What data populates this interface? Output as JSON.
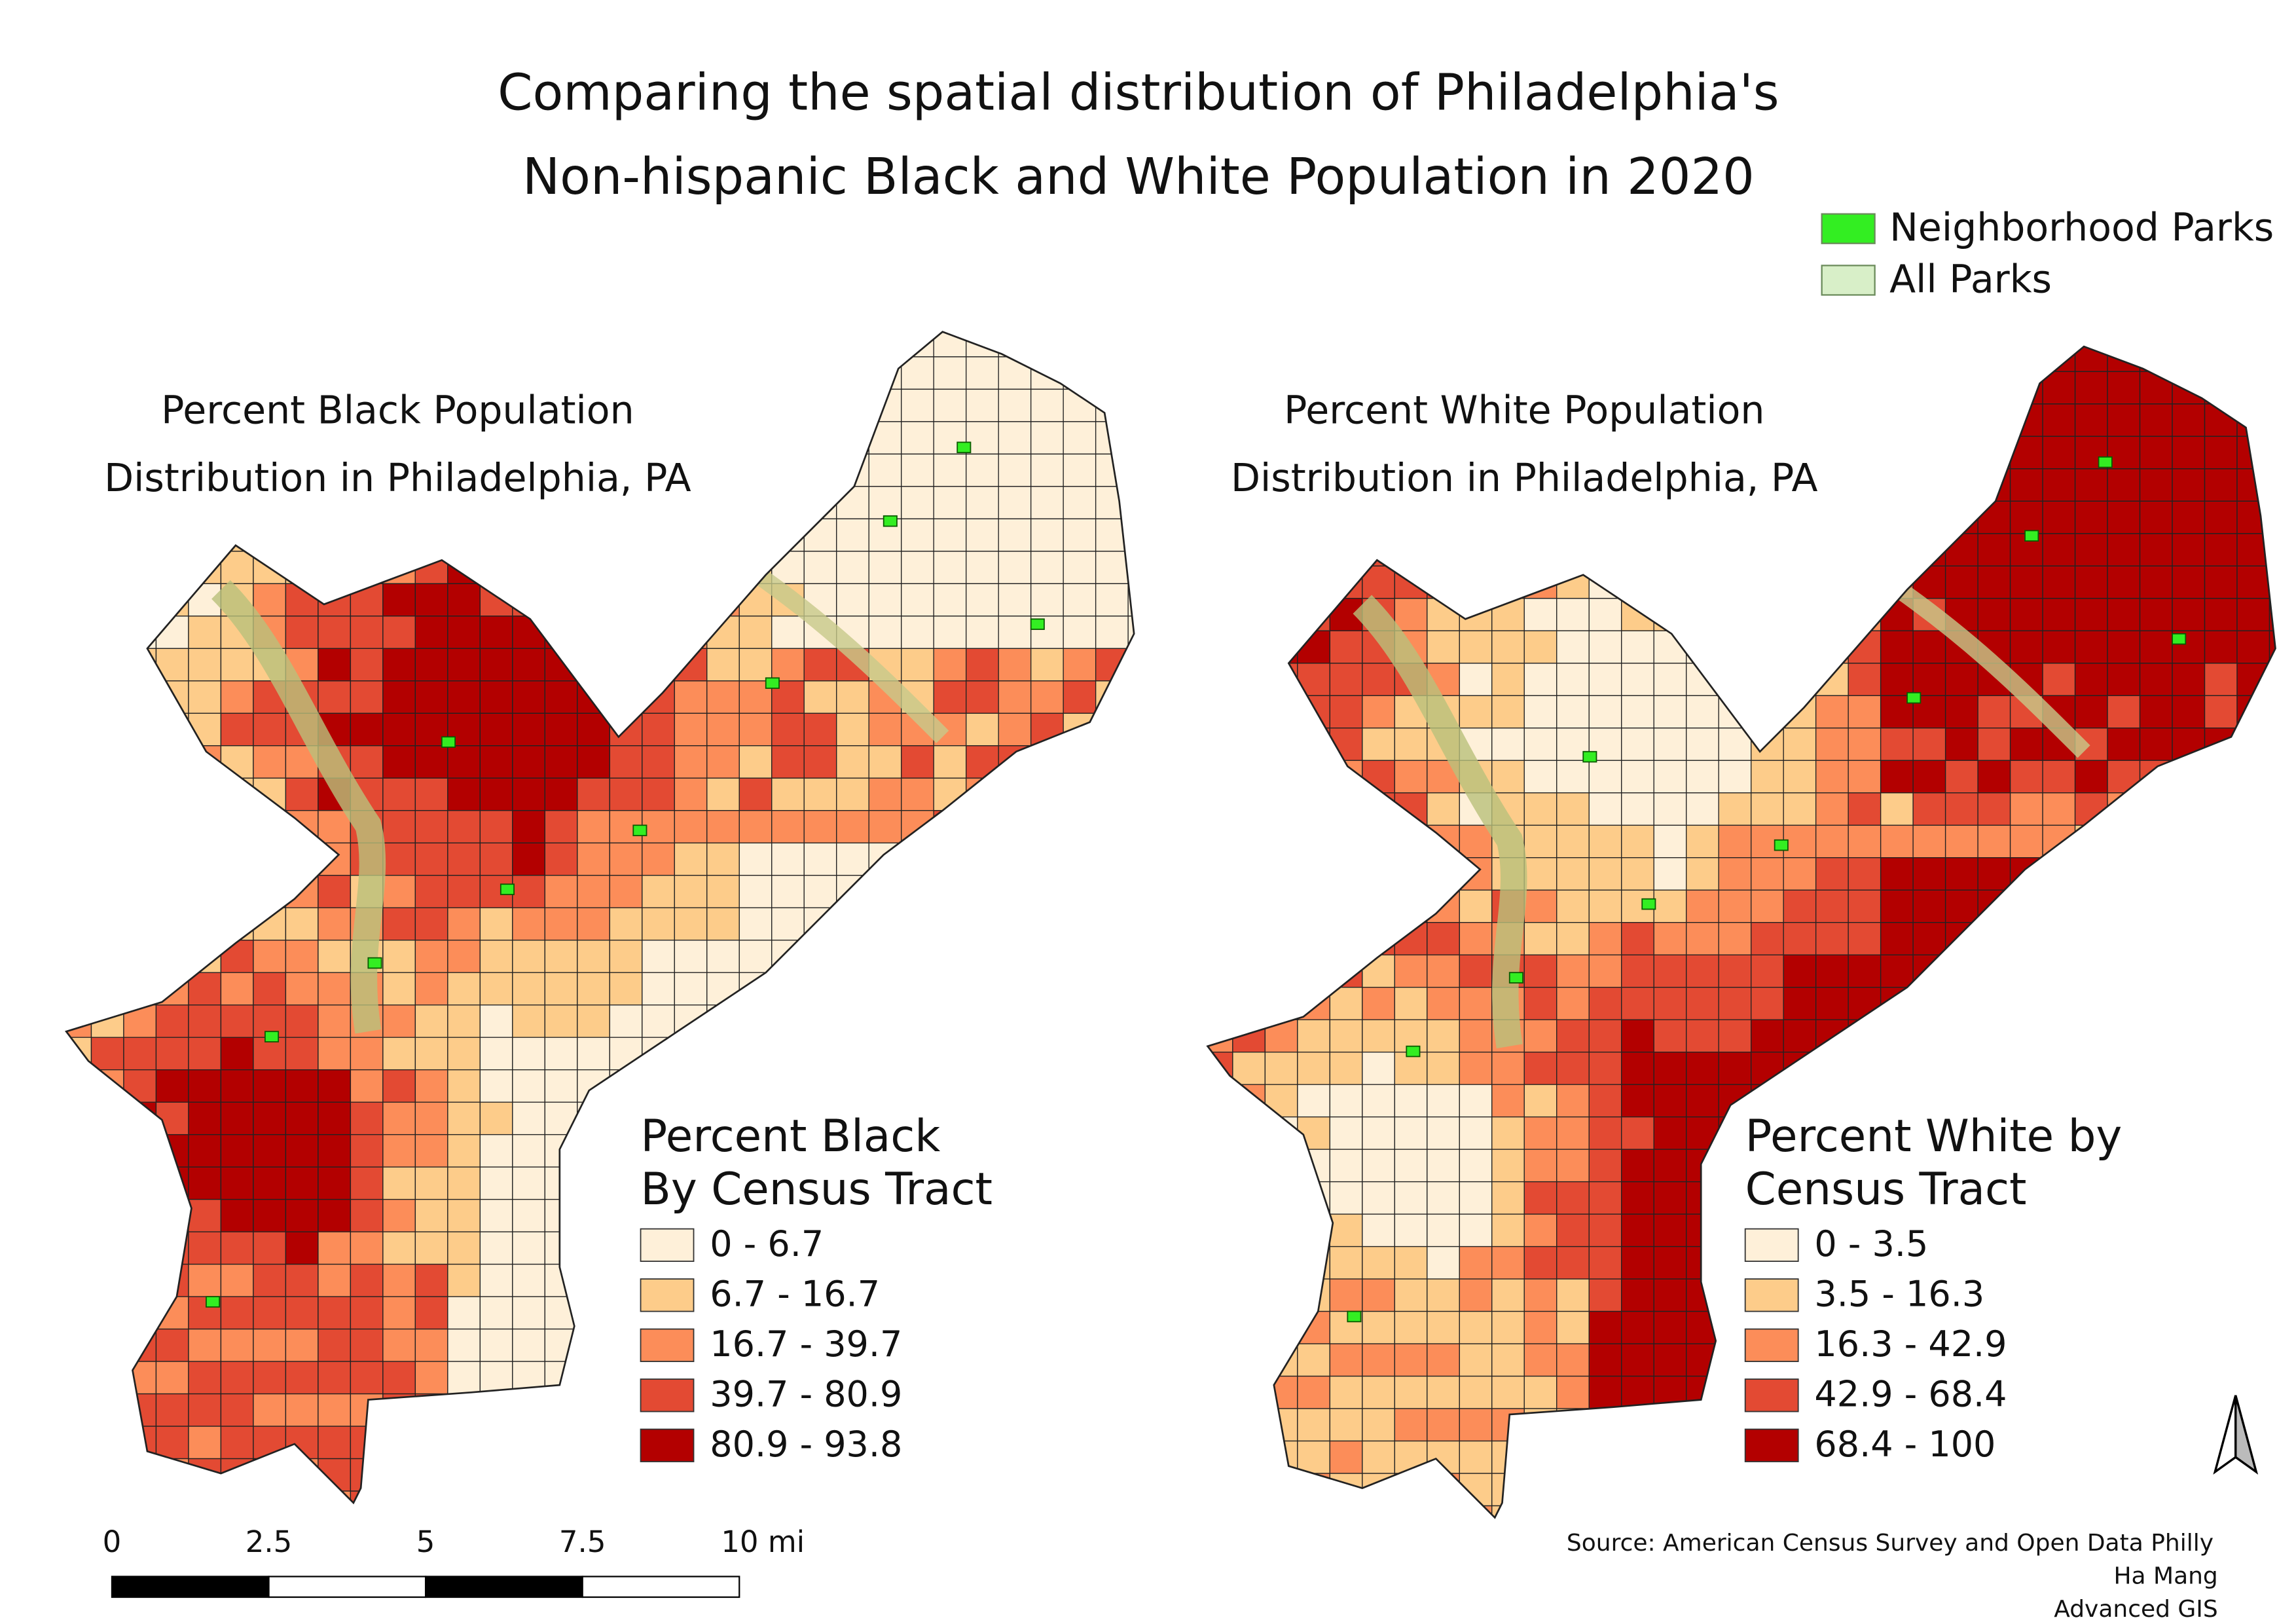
{
  "title": [
    "Comparing the spatial distribution of Philadelphia's",
    "Non-hispanic Black and White Population in 2020"
  ],
  "park_legend": [
    {
      "label": "Neighborhood Parks",
      "color": "#33ee22"
    },
    {
      "label": "All Parks",
      "color": "#d8efc8"
    }
  ],
  "maps": [
    {
      "title": [
        "Percent Black Population",
        "Distribution in Philadelphia, PA"
      ],
      "legend_title": [
        "Percent Black",
        "By Census Tract"
      ],
      "classes": [
        {
          "label": "0 - 6.7",
          "color": "#fef0d9"
        },
        {
          "label": "6.7 - 16.7",
          "color": "#fdcc8a"
        },
        {
          "label": "16.7 - 39.7",
          "color": "#fc8d59"
        },
        {
          "label": "39.7 - 80.9",
          "color": "#e34a33"
        },
        {
          "label": "80.9 - 93.8",
          "color": "#b30000"
        }
      ]
    },
    {
      "title": [
        "Percent White Population",
        "Distribution in Philadelphia, PA"
      ],
      "legend_title": [
        "Percent White by",
        "Census Tract"
      ],
      "classes": [
        {
          "label": "0 - 3.5",
          "color": "#fef0d9"
        },
        {
          "label": "3.5 - 16.3",
          "color": "#fdcc8a"
        },
        {
          "label": "16.3 - 42.9",
          "color": "#fc8d59"
        },
        {
          "label": "42.9 - 68.4",
          "color": "#e34a33"
        },
        {
          "label": "68.4 - 100",
          "color": "#b30000"
        }
      ]
    }
  ],
  "scale_bar": [
    "0",
    "2.5",
    "5",
    "7.5",
    "10 mi"
  ],
  "source": [
    "Source: American Census Survey and Open Data Philly",
    "Ha Mang",
    "Advanced GIS"
  ]
}
